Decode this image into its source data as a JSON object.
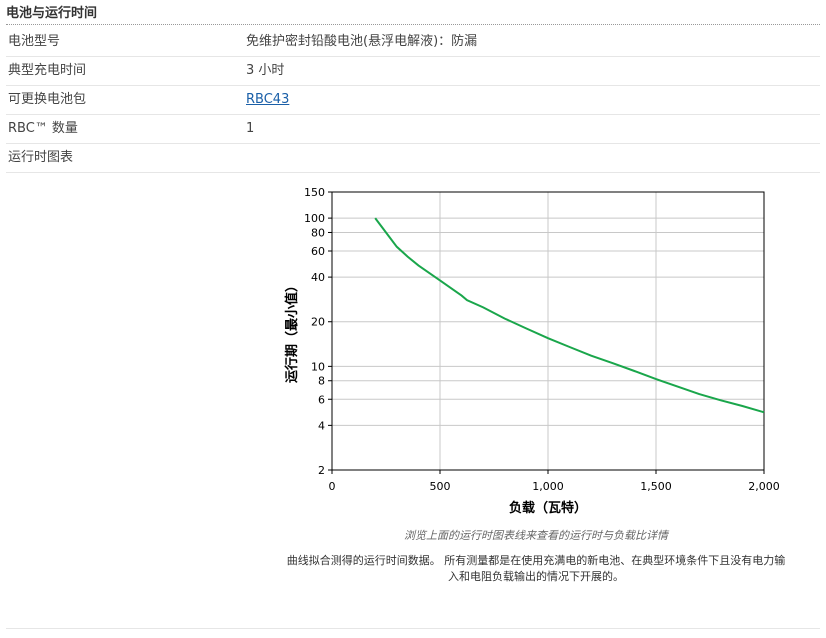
{
  "section": {
    "title": "电池与运行时间"
  },
  "specs": [
    {
      "label": "电池型号",
      "value": "免维护密封铅酸电池(悬浮电解液)：防漏"
    },
    {
      "label": "典型充电时间",
      "value": "3 小时"
    },
    {
      "label": "可更换电池包",
      "value": "RBC43"
    },
    {
      "label": "RBC™ 数量",
      "value": "1"
    },
    {
      "label": "运行时图表",
      "value": ""
    }
  ],
  "captions": {
    "note": "浏览上面的运行时图表线来查看的运行时与负载比详情",
    "body": "曲线拟合测得的运行时间数据。 所有测量都是在使用充满电的新电池、在典型环境条件下且没有电力输入和电阻负载输出的情况下开展的。"
  },
  "chart_data": {
    "type": "line",
    "title": "",
    "xlabel": "负载（瓦特）",
    "ylabel": "运行期（最小值）",
    "y_scale": "log",
    "xlim": [
      0,
      2000
    ],
    "ylim": [
      2,
      150
    ],
    "x_ticks": [
      0,
      500,
      1000,
      1500,
      2000
    ],
    "x_tick_labels": [
      "0",
      "500",
      "1,000",
      "1,500",
      "2,000"
    ],
    "y_ticks": [
      2,
      4,
      6,
      8,
      10,
      20,
      40,
      60,
      80,
      100,
      150
    ],
    "y_tick_labels": [
      "2",
      "4",
      "6",
      "8",
      "10",
      "20",
      "40",
      "60",
      "80",
      "100",
      "150"
    ],
    "grid": true,
    "series": [
      {
        "color": "#1aa64b",
        "x": [
          200,
          250,
          300,
          350,
          400,
          500,
          600,
          625,
          700,
          800,
          900,
          1000,
          1100,
          1200,
          1300,
          1400,
          1500,
          1600,
          1700,
          1800,
          1900,
          2000
        ],
        "y": [
          100,
          80,
          64,
          55,
          48,
          38,
          30,
          28,
          25,
          21,
          18,
          15.5,
          13.5,
          11.8,
          10.5,
          9.3,
          8.2,
          7.3,
          6.5,
          5.9,
          5.4,
          4.9
        ]
      }
    ]
  }
}
